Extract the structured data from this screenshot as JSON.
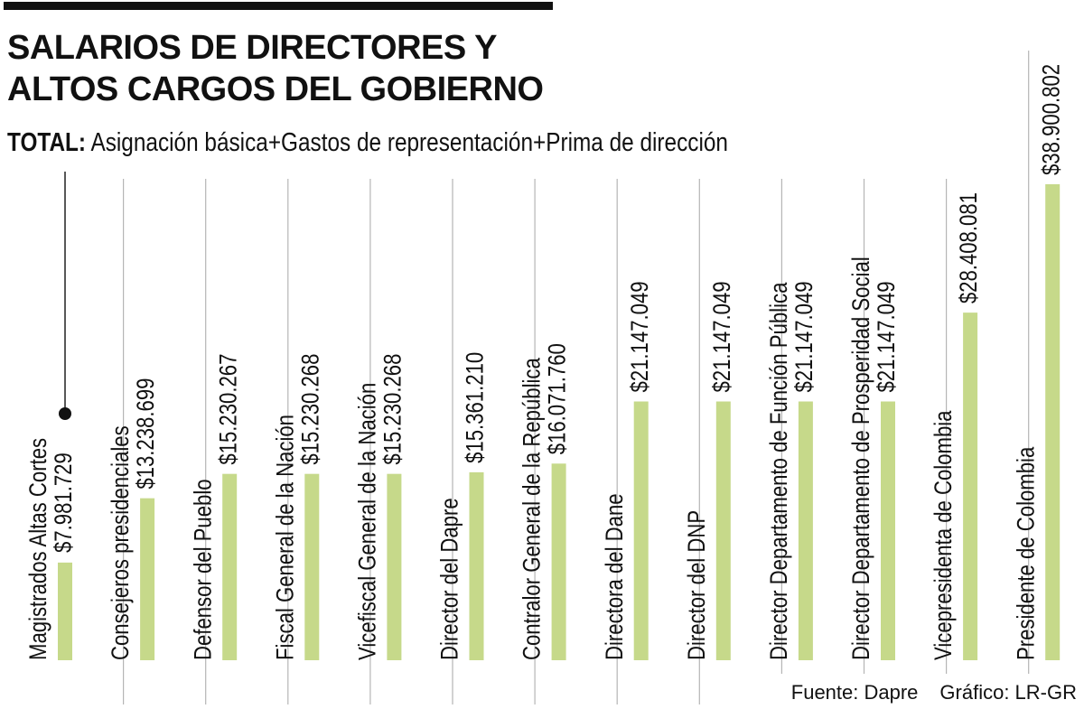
{
  "header": {
    "title_line1": "SALARIOS DE DIRECTORES Y",
    "title_line2": "ALTOS CARGOS DEL GOBIERNO",
    "subtitle_bold": "TOTAL:",
    "subtitle_rest": " Asignación básica+Gastos de representación+Prima de dirección"
  },
  "footer": {
    "source": "Fuente: Dapre",
    "credit": "Gráfico: LR-GR"
  },
  "colors": {
    "bar": "#c6d98a",
    "separator": "#b5b5b5",
    "text": "#111111"
  },
  "chart_data": {
    "type": "bar",
    "title": "SALARIOS DE DIRECTORES Y ALTOS CARGOS DEL GOBIERNO",
    "subtitle": "TOTAL: Asignación básica+Gastos de representación+Prima de dirección",
    "categories": [
      "Magistrados Altas Cortes",
      "Consejeros presidenciales",
      "Defensor del Pueblo",
      "Fiscal General de la Nación",
      "Vicefiscal General de la Nación",
      "Director del Dapre",
      "Contralor General de la República",
      "Directora del Dane",
      "Director del DNP",
      "Director Departamento de Función Pública",
      "Director Departamento de Prosperidad Social",
      "Vicepresidenta de Colombia",
      "Presidente de Colombia"
    ],
    "values": [
      7981729,
      13238699,
      15230267,
      15230268,
      15230268,
      15361210,
      16071760,
      21147049,
      21147049,
      21147049,
      21147049,
      28408081,
      38900802
    ],
    "value_labels": [
      "$7.981.729",
      "$13.238.699",
      "$15.230.267",
      "$15.230.268",
      "$15.230.268",
      "$15.361.210",
      "$16.071.760",
      "$21.147.049",
      "$21.147.049",
      "$21.147.049",
      "$21.147.049",
      "$28.408.081",
      "$38.900.802"
    ],
    "orientation": "vertical",
    "ylim": [
      0,
      40000000
    ],
    "grid": false,
    "legend": "none"
  }
}
